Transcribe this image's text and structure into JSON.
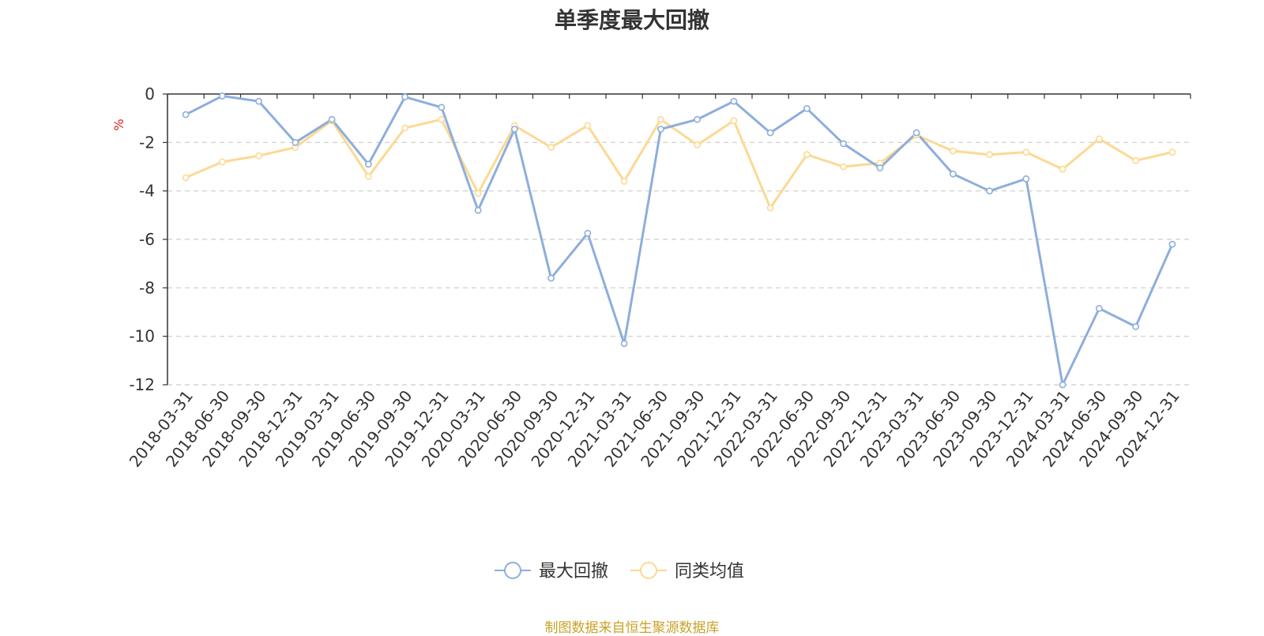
{
  "chart_data": {
    "type": "line",
    "title": "单季度最大回撤",
    "ylabel": "%",
    "ylim": [
      -12,
      0
    ],
    "yticks": [
      0,
      -2,
      -4,
      -6,
      -8,
      -10,
      -12
    ],
    "grid": true,
    "legend_position": "bottom-center",
    "categories": [
      "2018-03-31",
      "2018-06-30",
      "2018-09-30",
      "2018-12-31",
      "2019-03-31",
      "2019-06-30",
      "2019-09-30",
      "2019-12-31",
      "2020-03-31",
      "2020-06-30",
      "2020-09-30",
      "2020-12-31",
      "2021-03-31",
      "2021-06-30",
      "2021-09-30",
      "2021-12-31",
      "2022-03-31",
      "2022-06-30",
      "2022-09-30",
      "2022-12-31",
      "2023-03-31",
      "2023-06-30",
      "2023-09-30",
      "2023-12-31",
      "2024-03-31",
      "2024-06-30",
      "2024-09-30",
      "2024-12-31"
    ],
    "series": [
      {
        "name": "最大回撤",
        "color": "#8eaedb",
        "values": [
          -0.85,
          -0.08,
          -0.3,
          -2.0,
          -1.05,
          -2.9,
          -0.12,
          -0.55,
          -4.8,
          -1.45,
          -7.6,
          -5.75,
          -10.3,
          -1.45,
          -1.05,
          -0.3,
          -1.6,
          -0.6,
          -2.05,
          -3.05,
          -1.6,
          -3.3,
          -4.0,
          -3.5,
          -12.0,
          -8.85,
          -9.6,
          -6.2
        ]
      },
      {
        "name": "同类均值",
        "color": "#fcd993",
        "values": [
          -3.45,
          -2.8,
          -2.55,
          -2.2,
          -1.1,
          -3.4,
          -1.4,
          -1.05,
          -4.1,
          -1.3,
          -2.2,
          -1.3,
          -3.6,
          -1.05,
          -2.1,
          -1.1,
          -4.7,
          -2.5,
          -3.0,
          -2.85,
          -1.7,
          -2.35,
          -2.5,
          -2.4,
          -3.1,
          -1.85,
          -2.75,
          -2.4
        ]
      }
    ]
  },
  "footer": "制图数据来自恒生聚源数据库"
}
